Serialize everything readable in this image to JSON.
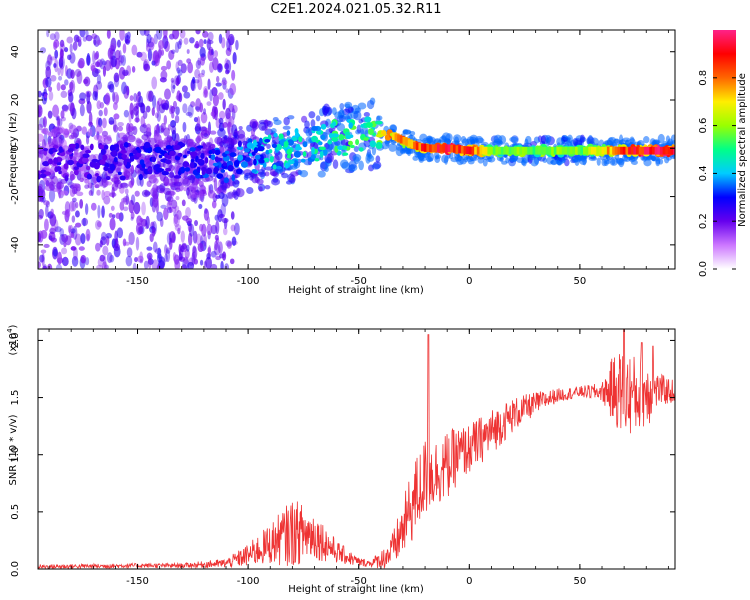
{
  "title": "C2E1.2024.021.05.32.R11",
  "chart_data": [
    {
      "type": "heatmap",
      "xlabel": "Height of straight line (km)",
      "ylabel": "Frequency (Hz)",
      "xlim": [
        -195,
        93
      ],
      "ylim": [
        -50,
        49
      ],
      "xticks": [
        "-150",
        "-100",
        "-50",
        "0",
        "50"
      ],
      "xtick_values": [
        -150,
        -100,
        -50,
        0,
        50
      ],
      "yticks": [
        "-40",
        "-20",
        "0",
        "20",
        "40"
      ],
      "ytick_values": [
        -40,
        -20,
        0,
        20,
        40
      ],
      "colorbar": {
        "label": "Normalized spectral amplitude",
        "range": [
          0,
          1
        ],
        "ticks": [
          "0.0",
          "0.2",
          "0.4",
          "0.6",
          "0.8"
        ],
        "tick_values": [
          0.0,
          0.2,
          0.4,
          0.6,
          0.8
        ],
        "colormap": [
          "#ffffff",
          "#cc77ff",
          "#6600ee",
          "#0000ff",
          "#00ccff",
          "#00ff88",
          "#99ff00",
          "#ffee00",
          "#ff6600",
          "#ff0000",
          "#ff2288"
        ]
      },
      "ridge": {
        "x": [
          -190,
          -170,
          -150,
          -130,
          -110,
          -100,
          -90,
          -80,
          -70,
          -60,
          -50,
          -40,
          -35,
          -30,
          -25,
          -20,
          -10,
          0,
          10,
          30,
          50,
          70,
          90
        ],
        "y": [
          -5,
          -6,
          -5,
          -5,
          -7,
          -4,
          -2,
          0,
          2,
          4,
          5,
          6,
          5,
          3,
          1,
          0,
          0,
          -1,
          -1,
          -1,
          -1,
          -1,
          -1
        ],
        "amplitude": [
          0.25,
          0.25,
          0.3,
          0.3,
          0.35,
          0.4,
          0.45,
          0.5,
          0.5,
          0.55,
          0.55,
          0.65,
          0.8,
          0.8,
          0.85,
          0.9,
          0.95,
          0.9,
          0.6,
          0.6,
          0.6,
          0.9,
          1.0
        ]
      },
      "grid": false
    },
    {
      "type": "line",
      "xlabel": "Height of straight line (km)",
      "ylabel": "SNR (10 * v/v)",
      "y_scale_label": "(x10",
      "y_scale_exp": "4",
      "y_scale_close": ")",
      "xlim": [
        -195,
        93
      ],
      "ylim": [
        0,
        2.1
      ],
      "xticks": [
        "-150",
        "-100",
        "-50",
        "0",
        "50"
      ],
      "xtick_values": [
        -150,
        -100,
        -50,
        0,
        50
      ],
      "yticks": [
        "0.0",
        "0.5",
        "1.0",
        "1.5",
        "2.0"
      ],
      "ytick_values": [
        0.0,
        0.5,
        1.0,
        1.5,
        2.0
      ],
      "color": "#ee3333",
      "envelope": {
        "x": [
          -195,
          -150,
          -130,
          -110,
          -100,
          -90,
          -80,
          -70,
          -60,
          -50,
          -45,
          -40,
          -35,
          -30,
          -25,
          -20,
          -15,
          -10,
          -5,
          0,
          10,
          20,
          30,
          40,
          50,
          60,
          65,
          70,
          75,
          80,
          85,
          93
        ],
        "base": [
          0.02,
          0.03,
          0.03,
          0.05,
          0.12,
          0.22,
          0.32,
          0.3,
          0.15,
          0.06,
          0.05,
          0.08,
          0.15,
          0.35,
          0.6,
          0.8,
          0.85,
          0.9,
          1.0,
          1.05,
          1.2,
          1.35,
          1.45,
          1.52,
          1.55,
          1.55,
          1.57,
          1.55,
          1.52,
          1.55,
          1.57,
          1.55
        ],
        "noise": [
          0.02,
          0.02,
          0.02,
          0.04,
          0.1,
          0.18,
          0.3,
          0.22,
          0.1,
          0.04,
          0.03,
          0.08,
          0.15,
          0.25,
          0.35,
          0.35,
          0.3,
          0.3,
          0.25,
          0.22,
          0.2,
          0.15,
          0.1,
          0.06,
          0.05,
          0.08,
          0.3,
          0.4,
          0.35,
          0.35,
          0.15,
          0.1
        ]
      },
      "peaks": [
        {
          "x": -18.5,
          "y": 2.05
        },
        {
          "x": 70,
          "y": 2.1
        },
        {
          "x": 78,
          "y": 1.98
        },
        {
          "x": 83,
          "y": 1.95
        }
      ],
      "grid": false
    }
  ]
}
